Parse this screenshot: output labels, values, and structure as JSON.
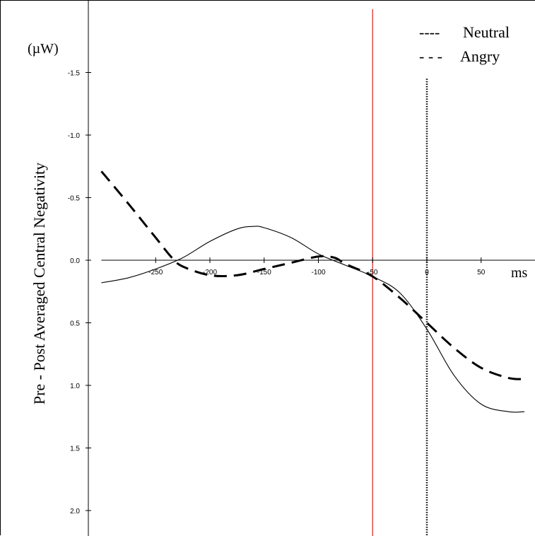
{
  "chart_data": {
    "type": "line",
    "ylabel": "Pre - Post Averaged Central Negativity",
    "y_unit": "(µW)",
    "x_unit": "ms",
    "xlim": [
      -300,
      90
    ],
    "ylim": [
      2.1,
      -2.0
    ],
    "y_axis_reversed": true,
    "x_ticks": [
      -250,
      -200,
      -150,
      -100,
      -50,
      0,
      50
    ],
    "x_tick_labels": [
      "-250",
      "-200",
      "-150",
      "-100",
      "-50",
      "0",
      "50"
    ],
    "y_ticks": [
      -1.5,
      -1.0,
      -0.5,
      0.0,
      0.5,
      1.0,
      1.5,
      2.0
    ],
    "y_tick_labels": [
      "-1.5",
      "-1.0",
      "-0.5",
      "0.0",
      "0.5",
      "1.0",
      "1.5",
      "2.0"
    ],
    "vlines": [
      {
        "x": -50,
        "color": "#e02020",
        "style": "solid"
      },
      {
        "x": 0,
        "color": "#000000",
        "style": "dotted",
        "y_top": -1.45
      }
    ],
    "legend_position": "top-right",
    "series": [
      {
        "name": "Neutral",
        "legend_sample": "----",
        "style": "solid",
        "x": [
          -300,
          -275,
          -250,
          -225,
          -200,
          -175,
          -160,
          -150,
          -125,
          -100,
          -75,
          -50,
          -25,
          0,
          25,
          50,
          75,
          90
        ],
        "values": [
          0.18,
          0.14,
          0.07,
          -0.02,
          -0.15,
          -0.25,
          -0.27,
          -0.26,
          -0.18,
          -0.05,
          0.04,
          0.13,
          0.26,
          0.55,
          0.92,
          1.15,
          1.21,
          1.21
        ]
      },
      {
        "name": "Angry",
        "legend_sample": "- - -",
        "style": "dashed",
        "x": [
          -300,
          -275,
          -250,
          -235,
          -225,
          -200,
          -175,
          -150,
          -125,
          -100,
          -85,
          -75,
          -50,
          -25,
          0,
          25,
          50,
          75,
          90
        ],
        "values": [
          -0.71,
          -0.45,
          -0.18,
          -0.02,
          0.05,
          0.12,
          0.12,
          0.07,
          0.02,
          -0.03,
          -0.02,
          0.03,
          0.13,
          0.3,
          0.5,
          0.7,
          0.86,
          0.94,
          0.95
        ]
      }
    ]
  }
}
